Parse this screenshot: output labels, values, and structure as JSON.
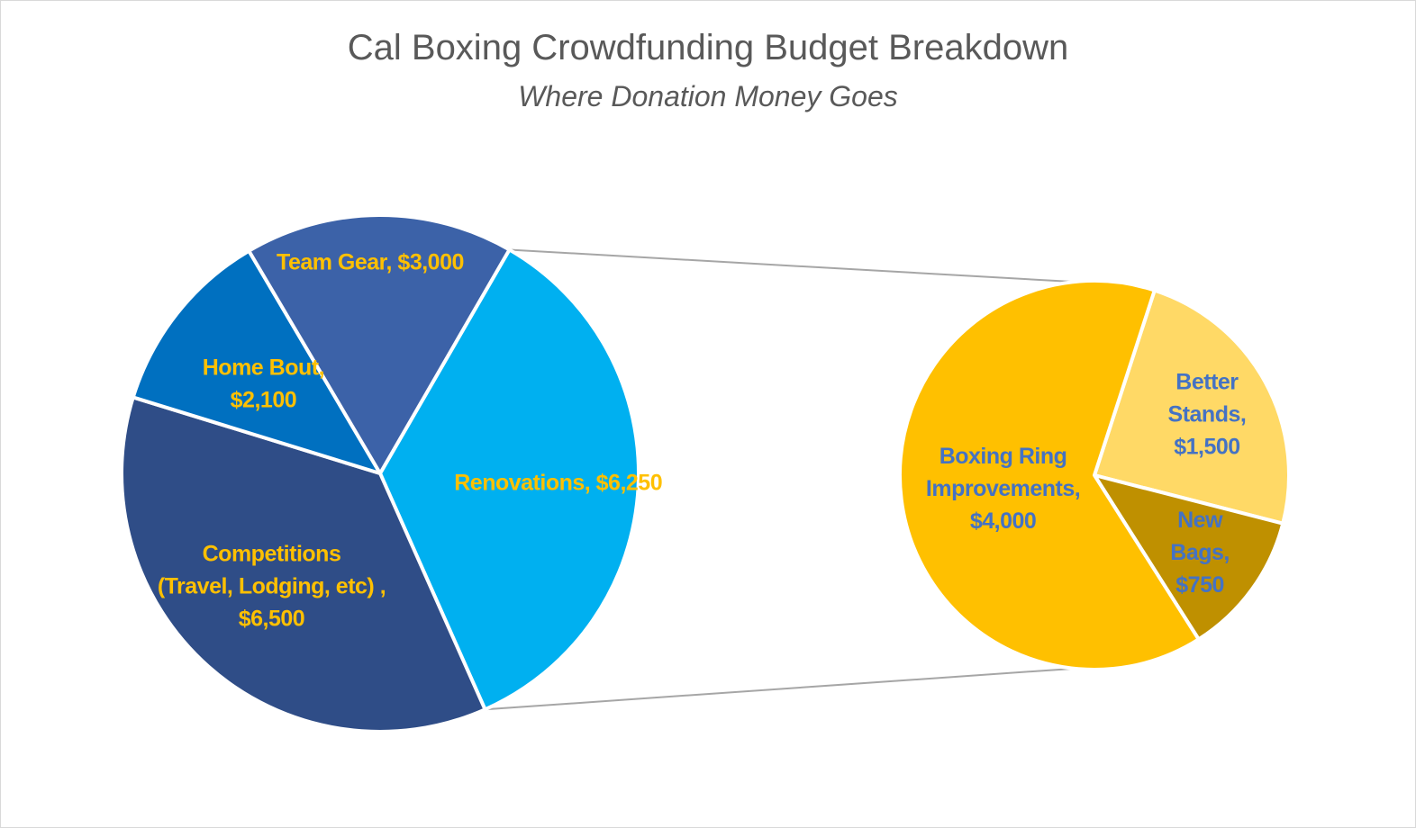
{
  "chart_data": {
    "type": "bar-of-pie",
    "title": "Cal Boxing Crowdfunding Budget Breakdown",
    "subtitle": "Where Donation Money Goes",
    "main_pie": {
      "slices": [
        {
          "label_lines": [
            "Renovations, $6,250"
          ],
          "category": "Renovations",
          "value": 6250,
          "color": "#00b0f0"
        },
        {
          "label_lines": [
            "Competitions",
            "(Travel, Lodging, etc) ,",
            "$6,500"
          ],
          "category": "Competitions (Travel, Lodging, etc)",
          "value": 6500,
          "color": "#2f4d87"
        },
        {
          "label_lines": [
            "Home Bout,",
            "$2,100"
          ],
          "category": "Home Bout",
          "value": 2100,
          "color": "#0070c0"
        },
        {
          "label_lines": [
            "Team Gear, $3,000"
          ],
          "category": "Team Gear",
          "value": 3000,
          "color": "#3c62a8"
        }
      ],
      "label_color": "#ffc000"
    },
    "secondary_pie": {
      "parent": "Renovations",
      "slices": [
        {
          "label_lines": [
            "Better",
            "Stands,",
            "$1,500"
          ],
          "category": "Better Stands",
          "value": 1500,
          "color": "#ffd966"
        },
        {
          "label_lines": [
            "New",
            "Bags,",
            "$750"
          ],
          "category": "New Bags",
          "value": 750,
          "color": "#bf9000"
        },
        {
          "label_lines": [
            "Boxing Ring",
            "Improvements,",
            "$4,000"
          ],
          "category": "Boxing Ring Improvements",
          "value": 4000,
          "color": "#ffc000"
        }
      ],
      "label_color": "#4472c4"
    },
    "connector_color": "#a6a6a6"
  }
}
